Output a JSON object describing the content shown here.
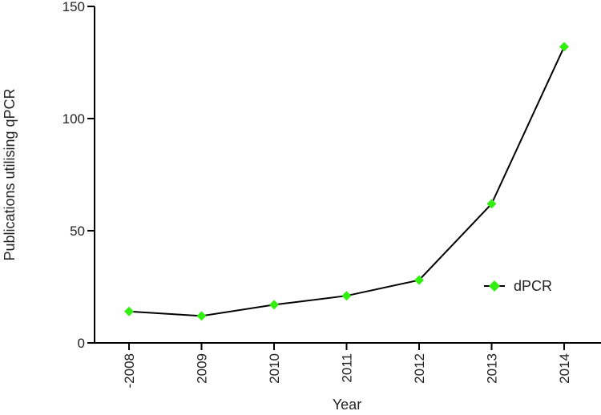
{
  "chart_data": {
    "type": "line",
    "categories": [
      "-2008",
      "2009",
      "2010",
      "2011",
      "2012",
      "2013",
      "2014"
    ],
    "series": [
      {
        "name": "dPCR",
        "values": [
          14,
          12,
          17,
          21,
          28,
          62,
          132
        ],
        "color": "#33ee11",
        "line_color": "#000000",
        "marker": "diamond"
      }
    ],
    "xlabel": "Year",
    "ylabel": "Publications utilising qPCR",
    "ylim": [
      0,
      150
    ],
    "yticks": [
      0,
      50,
      100,
      150
    ],
    "grid": false,
    "legend_position": "right"
  }
}
